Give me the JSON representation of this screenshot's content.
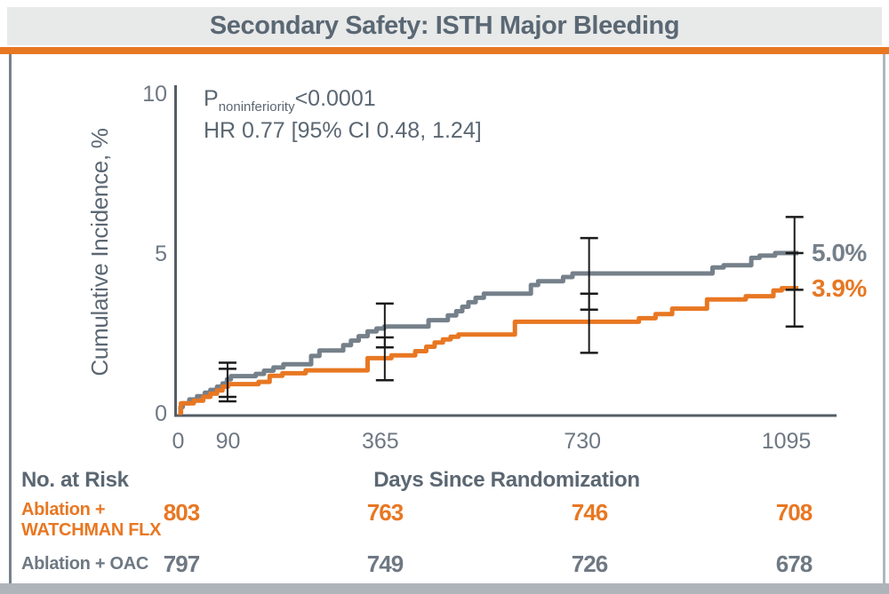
{
  "header": {
    "title": "Secondary Safety: ISTH Major Bleeding"
  },
  "chart_data": {
    "type": "line",
    "subtype": "kaplan-meier-step",
    "x_axis": {
      "label": "Days Since Randomization",
      "ticks": [
        0,
        90,
        365,
        730,
        1095
      ],
      "range": [
        0,
        1195
      ]
    },
    "y_axis": {
      "label": "Cumulative Incidence, %",
      "ticks": [
        0,
        5,
        10
      ],
      "range": [
        0,
        10
      ]
    },
    "annotations": {
      "p_prefix": "P",
      "p_subscript": "noninferiority",
      "p_value": "<0.0001",
      "hazard_ratio": "HR 0.77 [95% CI 0.48, 1.24]"
    },
    "series": [
      {
        "name": "Ablation + OAC",
        "color": "#75808A",
        "end_label": "5.0%",
        "final_pct": 5.0,
        "points": [
          [
            0,
            0
          ],
          [
            4,
            0.18
          ],
          [
            8,
            0.3
          ],
          [
            20,
            0.42
          ],
          [
            34,
            0.52
          ],
          [
            48,
            0.63
          ],
          [
            58,
            0.72
          ],
          [
            70,
            0.82
          ],
          [
            80,
            0.92
          ],
          [
            88,
            1.05
          ],
          [
            95,
            1.15
          ],
          [
            140,
            1.22
          ],
          [
            155,
            1.32
          ],
          [
            172,
            1.42
          ],
          [
            190,
            1.52
          ],
          [
            240,
            1.78
          ],
          [
            255,
            1.95
          ],
          [
            298,
            2.12
          ],
          [
            312,
            2.26
          ],
          [
            326,
            2.4
          ],
          [
            342,
            2.55
          ],
          [
            358,
            2.64
          ],
          [
            372,
            2.7
          ],
          [
            452,
            2.9
          ],
          [
            487,
            3.05
          ],
          [
            502,
            3.18
          ],
          [
            513,
            3.32
          ],
          [
            524,
            3.46
          ],
          [
            537,
            3.6
          ],
          [
            552,
            3.73
          ],
          [
            637,
            4.0
          ],
          [
            650,
            4.12
          ],
          [
            695,
            4.25
          ],
          [
            712,
            4.36
          ],
          [
            965,
            4.55
          ],
          [
            985,
            4.62
          ],
          [
            1035,
            4.85
          ],
          [
            1050,
            4.92
          ],
          [
            1078,
            5.0
          ]
        ]
      },
      {
        "name": "Ablation + WATCHMAN FLX",
        "color": "#E87722",
        "end_label": "3.9%",
        "final_pct": 3.9,
        "points": [
          [
            0,
            0
          ],
          [
            5,
            0.3
          ],
          [
            28,
            0.38
          ],
          [
            45,
            0.5
          ],
          [
            58,
            0.6
          ],
          [
            70,
            0.7
          ],
          [
            80,
            0.82
          ],
          [
            90,
            0.9
          ],
          [
            145,
            0.97
          ],
          [
            165,
            1.16
          ],
          [
            188,
            1.24
          ],
          [
            230,
            1.33
          ],
          [
            342,
            1.71
          ],
          [
            385,
            1.8
          ],
          [
            428,
            1.93
          ],
          [
            448,
            2.07
          ],
          [
            463,
            2.2
          ],
          [
            478,
            2.3
          ],
          [
            492,
            2.38
          ],
          [
            506,
            2.45
          ],
          [
            608,
            2.85
          ],
          [
            832,
            2.96
          ],
          [
            862,
            3.09
          ],
          [
            892,
            3.26
          ],
          [
            955,
            3.55
          ],
          [
            1025,
            3.65
          ],
          [
            1075,
            3.83
          ],
          [
            1090,
            3.9
          ]
        ]
      }
    ],
    "error_bars": [
      {
        "series": "Ablation + OAC",
        "day": 89,
        "lo": 0.5,
        "hi": 1.57
      },
      {
        "series": "Ablation + WATCHMAN FLX",
        "day": 89,
        "lo": 0.36,
        "hi": 1.38
      },
      {
        "series": "Ablation + OAC",
        "day": 373,
        "lo": 2.05,
        "hi": 3.42
      },
      {
        "series": "Ablation + WATCHMAN FLX",
        "day": 373,
        "lo": 1.02,
        "hi": 2.36
      },
      {
        "series": "Ablation + OAC",
        "day": 742,
        "lo": 3.23,
        "hi": 5.47
      },
      {
        "series": "Ablation + WATCHMAN FLX",
        "day": 742,
        "lo": 1.88,
        "hi": 3.73
      },
      {
        "series": "Ablation + OAC",
        "day": 1113,
        "lo": 3.85,
        "hi": 6.13
      },
      {
        "series": "Ablation + WATCHMAN FLX",
        "day": 1113,
        "lo": 2.7,
        "hi": 5.0
      }
    ],
    "curve_end_day": 1120
  },
  "risk_table": {
    "heading": "No. at Risk",
    "columns_days": [
      0,
      365,
      730,
      1095
    ],
    "rows": [
      {
        "label_lines": [
          "Ablation +",
          "WATCHMAN FLX"
        ],
        "color": "#E87722",
        "values": [
          "803",
          "763",
          "746",
          "708"
        ]
      },
      {
        "label_lines": [
          "Ablation + OAC"
        ],
        "color": "#6E7883",
        "values": [
          "797",
          "749",
          "726",
          "678"
        ]
      }
    ]
  },
  "theme": {
    "accent_orange": "#E87722",
    "curve_gray": "#75808A",
    "text_gray": "#5B6772",
    "title_band_bg": "#E8E9E9",
    "axis_color": "#545D66",
    "error_bar_color": "#1A1A1A"
  }
}
